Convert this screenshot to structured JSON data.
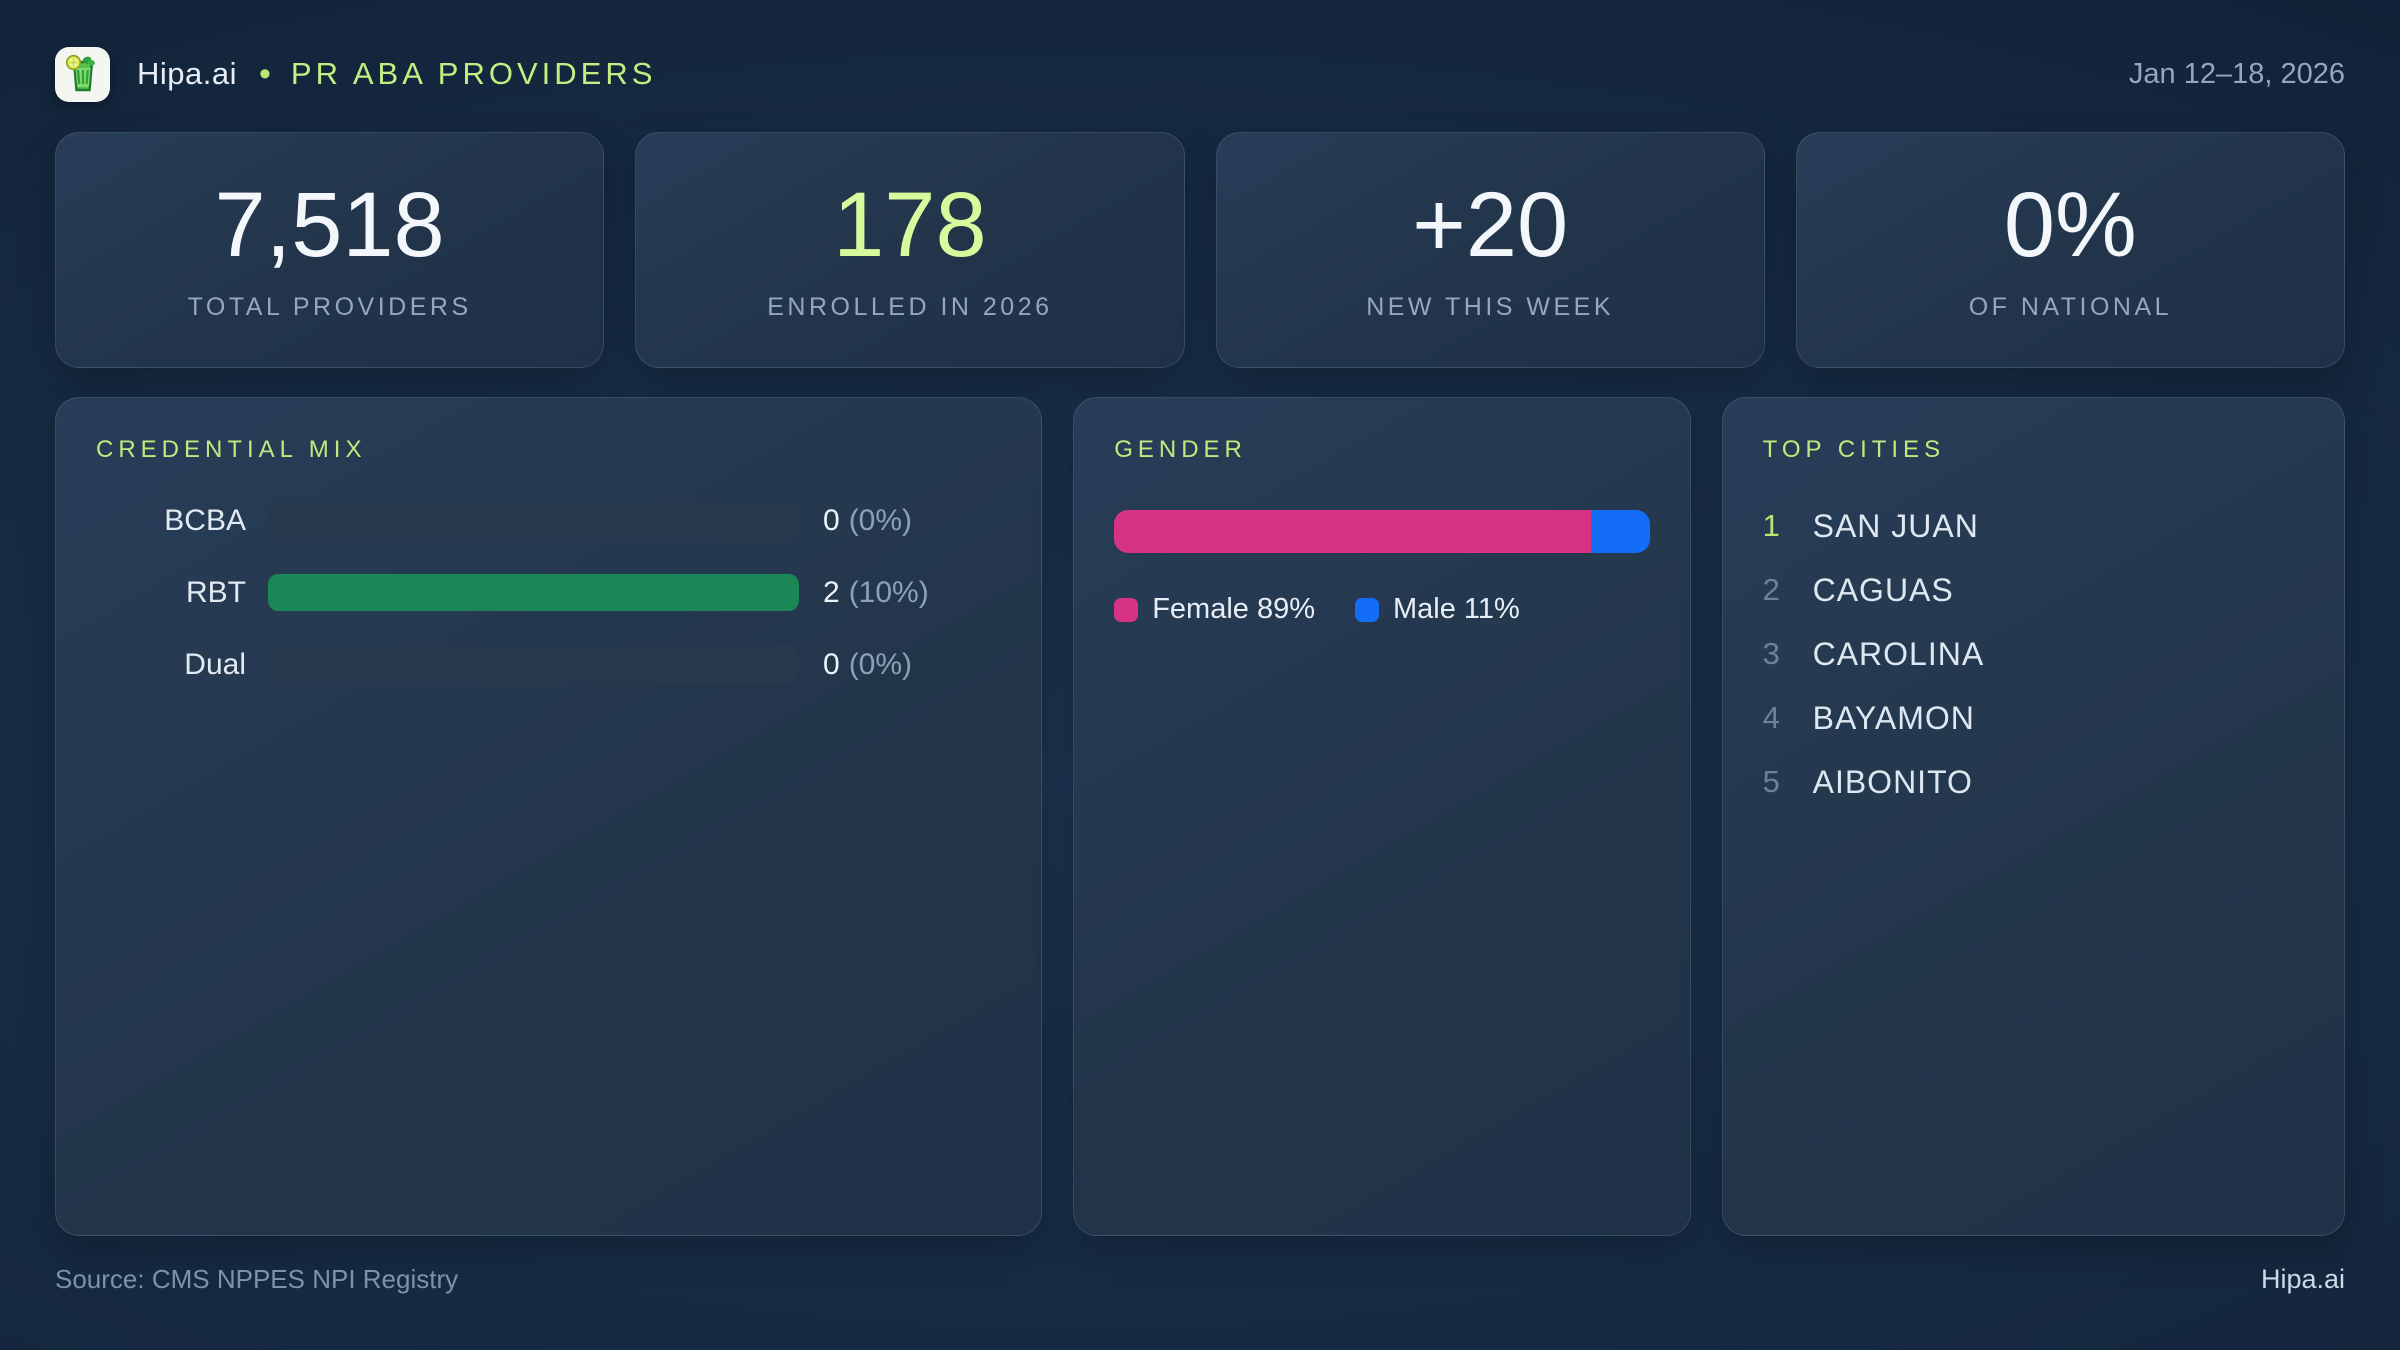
{
  "header": {
    "brand": "Hipa.ai",
    "separator": "•",
    "title": "PR ABA PROVIDERS",
    "date_range": "Jan 12–18, 2026",
    "logo_icon": "mojito-drink-icon"
  },
  "stats": [
    {
      "value": "7,518",
      "label": "TOTAL PROVIDERS"
    },
    {
      "value": "178",
      "label": "ENROLLED IN 2026"
    },
    {
      "value": "+20",
      "label": "NEW THIS WEEK"
    },
    {
      "value": "0%",
      "label": "OF NATIONAL"
    }
  ],
  "credential_mix": {
    "title": "CREDENTIAL MIX",
    "rows": [
      {
        "label": "BCBA",
        "count": "0",
        "pct": "(0%)",
        "bar_pct": 0
      },
      {
        "label": "RBT",
        "count": "2",
        "pct": "(10%)",
        "bar_pct": 100
      },
      {
        "label": "Dual",
        "count": "0",
        "pct": "(0%)",
        "bar_pct": 0
      }
    ]
  },
  "gender": {
    "title": "GENDER",
    "female_pct": 89,
    "male_pct": 11,
    "female_label": "Female 89%",
    "male_label": "Male 11%"
  },
  "top_cities": {
    "title": "TOP CITIES",
    "items": [
      {
        "rank": "1",
        "city": "SAN JUAN"
      },
      {
        "rank": "2",
        "city": "CAGUAS"
      },
      {
        "rank": "3",
        "city": "CAROLINA"
      },
      {
        "rank": "4",
        "city": "BAYAMON"
      },
      {
        "rank": "5",
        "city": "AIBONITO"
      }
    ]
  },
  "footer": {
    "source": "Source: CMS NPPES NPI Registry",
    "brand": "Hipa.ai"
  },
  "colors": {
    "accent_lime": "#d9f99d",
    "panel_title_lime": "#c0ea7d",
    "bar_green": "#1b8757",
    "female_pink": "#d63384",
    "male_blue": "#146df6",
    "page_bg_mid": "#162b43",
    "card_bg": "#223549",
    "muted_text": "#94a7bc"
  },
  "chart_data": [
    {
      "type": "bar",
      "orientation": "horizontal",
      "title": "CREDENTIAL MIX",
      "categories": [
        "BCBA",
        "RBT",
        "Dual"
      ],
      "values": [
        0,
        2,
        0
      ],
      "value_labels": [
        "0 (0%)",
        "2 (10%)",
        "0 (0%)"
      ],
      "note": "bars scaled to max value; RBT (max=2) renders full width",
      "bar_color": "#1b8757"
    },
    {
      "type": "bar",
      "orientation": "horizontal",
      "stacked": true,
      "title": "GENDER",
      "series": [
        {
          "name": "Female",
          "values": [
            89
          ],
          "color": "#d63384"
        },
        {
          "name": "Male",
          "values": [
            11
          ],
          "color": "#146df6"
        }
      ],
      "unit": "%",
      "legend_position": "below"
    },
    {
      "type": "table",
      "title": "TOP CITIES",
      "columns": [
        "rank",
        "city"
      ],
      "rows": [
        [
          "1",
          "SAN JUAN"
        ],
        [
          "2",
          "CAGUAS"
        ],
        [
          "3",
          "CAROLINA"
        ],
        [
          "4",
          "BAYAMON"
        ],
        [
          "5",
          "AIBONITO"
        ]
      ]
    }
  ]
}
